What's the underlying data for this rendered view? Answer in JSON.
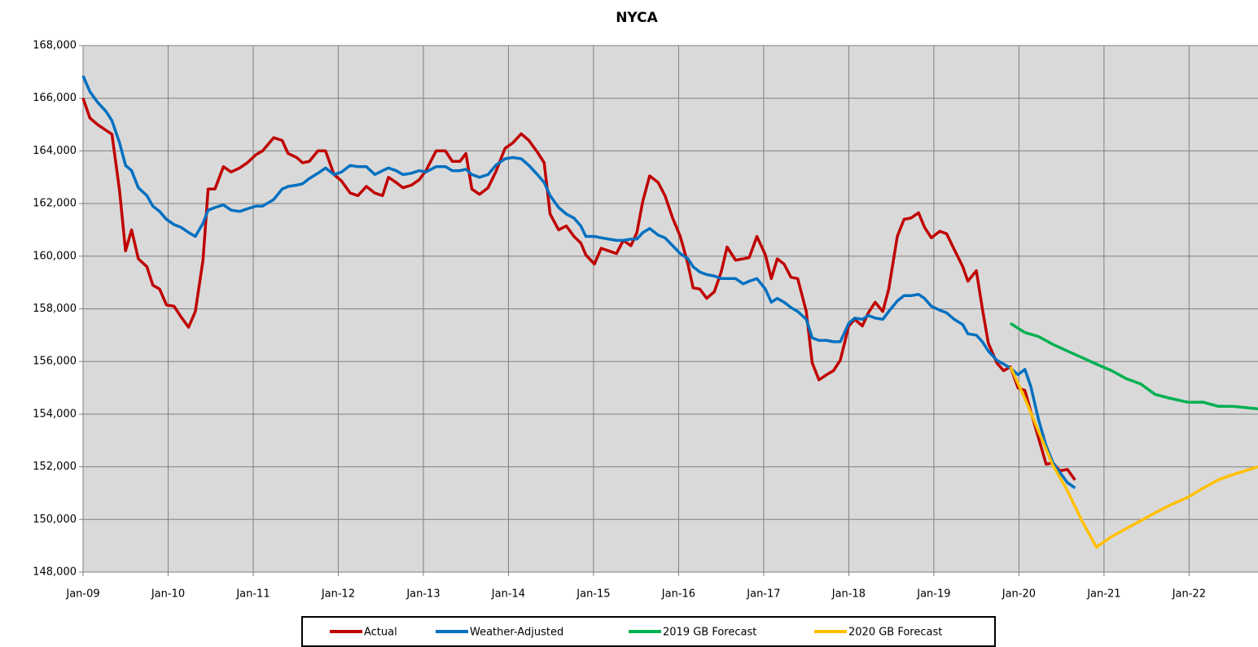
{
  "chart_data": {
    "type": "line",
    "title": "NYCA",
    "xlim": [
      2009,
      2022.81
    ],
    "xticks": [
      {
        "value": 2009,
        "label": "Jan-09"
      },
      {
        "value": 2010,
        "label": "Jan-10"
      },
      {
        "value": 2011,
        "label": "Jan-11"
      },
      {
        "value": 2012,
        "label": "Jan-12"
      },
      {
        "value": 2013,
        "label": "Jan-13"
      },
      {
        "value": 2014,
        "label": "Jan-14"
      },
      {
        "value": 2015,
        "label": "Jan-15"
      },
      {
        "value": 2016,
        "label": "Jan-16"
      },
      {
        "value": 2017,
        "label": "Jan-17"
      },
      {
        "value": 2018,
        "label": "Jan-18"
      },
      {
        "value": 2019,
        "label": "Jan-19"
      },
      {
        "value": 2020,
        "label": "Jan-20"
      },
      {
        "value": 2021,
        "label": "Jan-21"
      },
      {
        "value": 2022,
        "label": "Jan-22"
      }
    ],
    "ylim": [
      148000,
      168000
    ],
    "yticks": [
      {
        "value": 148000,
        "label": "148,000"
      },
      {
        "value": 150000,
        "label": "150,000"
      },
      {
        "value": 152000,
        "label": "152,000"
      },
      {
        "value": 154000,
        "label": "154,000"
      },
      {
        "value": 156000,
        "label": "156,000"
      },
      {
        "value": 158000,
        "label": "158,000"
      },
      {
        "value": 160000,
        "label": "160,000"
      },
      {
        "value": 162000,
        "label": "162,000"
      },
      {
        "value": 164000,
        "label": "164,000"
      },
      {
        "value": 166000,
        "label": "166,000"
      },
      {
        "value": 168000,
        "label": "168,000"
      }
    ],
    "grid": true,
    "legend": "bottom",
    "series": [
      {
        "name": "Actual",
        "color": "#c00000",
        "x": [
          2009,
          2009.08,
          2009.17,
          2009.34,
          2009.43,
          2009.5,
          2009.57,
          2009.65,
          2009.75,
          2009.82,
          2009.9,
          2009.98,
          2010.07,
          2010.15,
          2010.24,
          2010.32,
          2010.41,
          2010.47,
          2010.55,
          2010.65,
          2010.74,
          2010.84,
          2010.93,
          2011.03,
          2011.11,
          2011.24,
          2011.34,
          2011.41,
          2011.51,
          2011.58,
          2011.66,
          2011.76,
          2011.85,
          2011.95,
          2012.04,
          2012.14,
          2012.23,
          2012.33,
          2012.43,
          2012.52,
          2012.59,
          2012.68,
          2012.76,
          2012.86,
          2012.95,
          2013.03,
          2013.15,
          2013.26,
          2013.34,
          2013.43,
          2013.5,
          2013.57,
          2013.66,
          2013.76,
          2013.85,
          2013.96,
          2014.05,
          2014.15,
          2014.24,
          2014.34,
          2014.42,
          2014.49,
          2014.59,
          2014.68,
          2014.77,
          2014.85,
          2014.91,
          2015.01,
          2015.09,
          2015.18,
          2015.27,
          2015.35,
          2015.44,
          2015.51,
          2015.58,
          2015.66,
          2015.76,
          2015.84,
          2015.93,
          2016.02,
          2016.11,
          2016.17,
          2016.25,
          2016.33,
          2016.42,
          2016.5,
          2016.57,
          2016.67,
          2016.76,
          2016.83,
          2016.92,
          2017.02,
          2017.09,
          2017.16,
          2017.24,
          2017.32,
          2017.4,
          2017.5,
          2017.57,
          2017.65,
          2017.74,
          2017.82,
          2017.9,
          2018,
          2018.07,
          2018.16,
          2018.23,
          2018.31,
          2018.4,
          2018.47,
          2018.57,
          2018.65,
          2018.73,
          2018.82,
          2018.89,
          2018.97,
          2019.07,
          2019.15,
          2019.24,
          2019.34,
          2019.4,
          2019.5,
          2019.57,
          2019.64,
          2019.74,
          2019.82,
          2019.9,
          2019.99,
          2020.07,
          2020.14,
          2020.23,
          2020.32,
          2020.4,
          2020.48,
          2020.57,
          2020.66
        ],
        "values": [
          166000,
          165250,
          165000,
          164630,
          162470,
          160200,
          161000,
          159900,
          159600,
          158900,
          158750,
          158150,
          158100,
          157700,
          157300,
          157900,
          159850,
          162550,
          162550,
          163400,
          163200,
          163350,
          163550,
          163850,
          164000,
          164500,
          164400,
          163900,
          163750,
          163550,
          163600,
          164000,
          164000,
          163100,
          162850,
          162400,
          162300,
          162650,
          162400,
          162300,
          163000,
          162800,
          162600,
          162700,
          162900,
          163250,
          164000,
          164000,
          163600,
          163600,
          163900,
          162550,
          162350,
          162600,
          163200,
          164100,
          164300,
          164650,
          164400,
          163950,
          163550,
          161600,
          161000,
          161150,
          160750,
          160500,
          160050,
          159700,
          160300,
          160200,
          160100,
          160600,
          160400,
          160900,
          162100,
          163050,
          162800,
          162300,
          161450,
          160750,
          159700,
          158800,
          158750,
          158400,
          158650,
          159400,
          160350,
          159850,
          159900,
          159950,
          160750,
          160050,
          159150,
          159900,
          159700,
          159200,
          159150,
          157900,
          155950,
          155300,
          155500,
          155650,
          156050,
          157350,
          157600,
          157350,
          157850,
          158250,
          157900,
          158750,
          160750,
          161400,
          161450,
          161650,
          161100,
          160700,
          160950,
          160850,
          160250,
          159600,
          159050,
          159450,
          158000,
          156700,
          155950,
          155650,
          155800,
          155000,
          154900,
          154100,
          153100,
          152100,
          152150,
          151850,
          151900,
          151500
        ]
      },
      {
        "name": "Weather-Adjusted",
        "color": "#0070c0",
        "x": [
          2009,
          2009.08,
          2009.17,
          2009.27,
          2009.34,
          2009.43,
          2009.5,
          2009.57,
          2009.65,
          2009.75,
          2009.82,
          2009.9,
          2009.98,
          2010.07,
          2010.15,
          2010.24,
          2010.32,
          2010.41,
          2010.47,
          2010.55,
          2010.65,
          2010.74,
          2010.84,
          2010.93,
          2011.03,
          2011.11,
          2011.24,
          2011.34,
          2011.41,
          2011.51,
          2011.58,
          2011.66,
          2011.76,
          2011.85,
          2011.95,
          2012.04,
          2012.14,
          2012.23,
          2012.33,
          2012.43,
          2012.52,
          2012.59,
          2012.68,
          2012.76,
          2012.86,
          2012.95,
          2013.03,
          2013.15,
          2013.26,
          2013.34,
          2013.43,
          2013.5,
          2013.57,
          2013.66,
          2013.76,
          2013.85,
          2013.96,
          2014.05,
          2014.15,
          2014.24,
          2014.34,
          2014.42,
          2014.49,
          2014.59,
          2014.68,
          2014.77,
          2014.85,
          2014.91,
          2015.01,
          2015.09,
          2015.18,
          2015.27,
          2015.35,
          2015.44,
          2015.51,
          2015.58,
          2015.66,
          2015.76,
          2015.84,
          2015.93,
          2016.02,
          2016.11,
          2016.17,
          2016.25,
          2016.33,
          2016.42,
          2016.5,
          2016.57,
          2016.67,
          2016.76,
          2016.83,
          2016.92,
          2017.02,
          2017.09,
          2017.16,
          2017.24,
          2017.32,
          2017.4,
          2017.5,
          2017.57,
          2017.65,
          2017.74,
          2017.82,
          2017.9,
          2018,
          2018.07,
          2018.16,
          2018.23,
          2018.31,
          2018.4,
          2018.47,
          2018.57,
          2018.65,
          2018.73,
          2018.82,
          2018.89,
          2018.97,
          2019.07,
          2019.15,
          2019.24,
          2019.34,
          2019.4,
          2019.5,
          2019.57,
          2019.64,
          2019.74,
          2019.82,
          2019.9,
          2019.99,
          2020.07,
          2020.14,
          2020.23,
          2020.32,
          2020.4,
          2020.48,
          2020.57,
          2020.66
        ],
        "values": [
          166850,
          166250,
          165850,
          165500,
          165150,
          164300,
          163450,
          163250,
          162600,
          162300,
          161900,
          161700,
          161400,
          161200,
          161100,
          160900,
          160750,
          161250,
          161750,
          161850,
          161950,
          161750,
          161700,
          161800,
          161900,
          161900,
          162150,
          162550,
          162650,
          162700,
          162750,
          162950,
          163150,
          163350,
          163100,
          163200,
          163450,
          163400,
          163400,
          163100,
          163250,
          163350,
          163250,
          163100,
          163150,
          163250,
          163200,
          163400,
          163400,
          163250,
          163250,
          163300,
          163100,
          163000,
          163100,
          163450,
          163700,
          163750,
          163700,
          163450,
          163100,
          162800,
          162300,
          161850,
          161600,
          161450,
          161150,
          160750,
          160750,
          160700,
          160650,
          160600,
          160600,
          160650,
          160650,
          160900,
          161050,
          160800,
          160700,
          160400,
          160100,
          159900,
          159600,
          159400,
          159300,
          159250,
          159150,
          159150,
          159150,
          158950,
          159050,
          159150,
          158750,
          158250,
          158400,
          158250,
          158050,
          157900,
          157600,
          156900,
          156800,
          156800,
          156750,
          156750,
          157450,
          157650,
          157600,
          157750,
          157650,
          157600,
          157900,
          158300,
          158500,
          158500,
          158550,
          158400,
          158100,
          157950,
          157850,
          157600,
          157400,
          157050,
          157000,
          156750,
          156400,
          156050,
          155900,
          155750,
          155500,
          155700,
          155050,
          153800,
          152800,
          152150,
          151800,
          151400,
          151200
        ]
      },
      {
        "name": "2019 GB Forecast",
        "color": "#00b050",
        "x": [
          2019.9,
          2020.07,
          2020.23,
          2020.4,
          2020.57,
          2020.74,
          2020.91,
          2021.09,
          2021.26,
          2021.43,
          2021.6,
          2021.78,
          2021.99,
          2022.17,
          2022.34,
          2022.51,
          2022.81
        ],
        "values": [
          157450,
          157100,
          156950,
          156650,
          156400,
          156150,
          155900,
          155650,
          155350,
          155150,
          154750,
          154600,
          154450,
          154450,
          154300,
          154300,
          154200
        ]
      },
      {
        "name": "2020 GB Forecast",
        "color": "#ffc000",
        "x": [
          2019.9,
          2020.07,
          2020.23,
          2020.4,
          2020.57,
          2020.74,
          2020.91,
          2021.09,
          2021.26,
          2021.43,
          2021.6,
          2021.78,
          2021.99,
          2022.17,
          2022.34,
          2022.51,
          2022.81
        ],
        "values": [
          155800,
          154600,
          153350,
          152050,
          151100,
          149950,
          148950,
          149350,
          149650,
          149950,
          150250,
          150550,
          150850,
          151200,
          151500,
          151700,
          152000
        ]
      }
    ]
  }
}
